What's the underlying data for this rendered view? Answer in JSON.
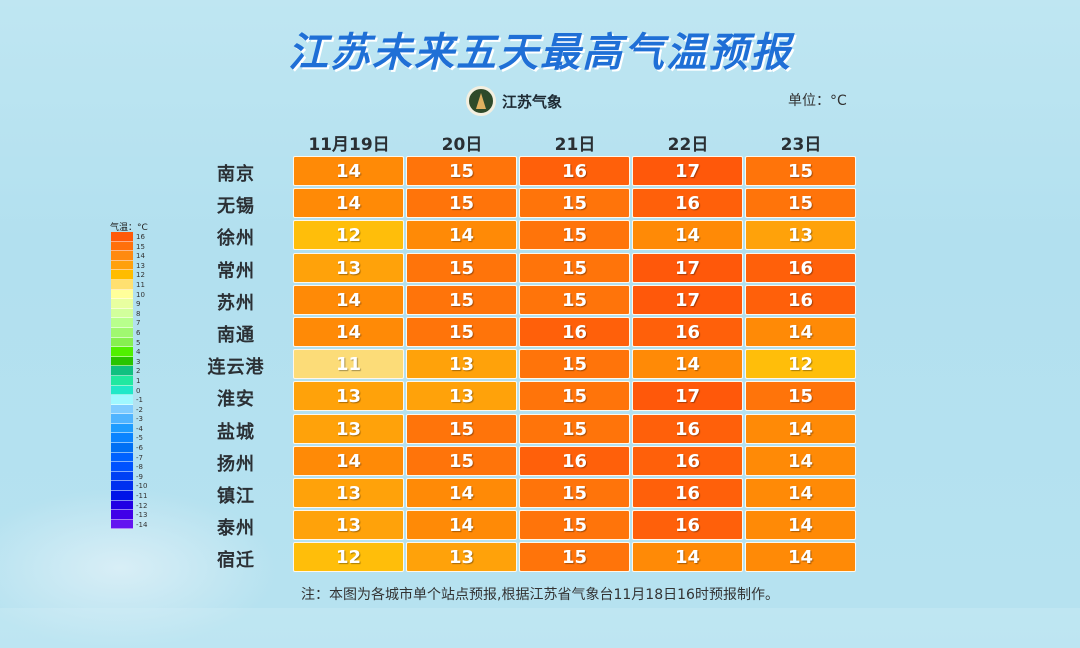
{
  "title": "江苏未来五天最高气温预报",
  "logo_text": "江苏气象",
  "unit": "单位：°C",
  "dates": [
    "11月19日",
    "20日",
    "21日",
    "22日",
    "23日"
  ],
  "rows": [
    {
      "city": "南京",
      "temps": [
        14,
        15,
        16,
        17,
        15
      ]
    },
    {
      "city": "无锡",
      "temps": [
        14,
        15,
        15,
        16,
        15
      ]
    },
    {
      "city": "徐州",
      "temps": [
        12,
        14,
        15,
        14,
        13
      ]
    },
    {
      "city": "常州",
      "temps": [
        13,
        15,
        15,
        17,
        16
      ]
    },
    {
      "city": "苏州",
      "temps": [
        14,
        15,
        15,
        17,
        16
      ]
    },
    {
      "city": "南通",
      "temps": [
        14,
        15,
        16,
        16,
        14
      ]
    },
    {
      "city": "连云港",
      "temps": [
        11,
        13,
        15,
        14,
        12
      ]
    },
    {
      "city": "淮安",
      "temps": [
        13,
        13,
        15,
        17,
        15
      ]
    },
    {
      "city": "盐城",
      "temps": [
        13,
        15,
        15,
        16,
        14
      ]
    },
    {
      "city": "扬州",
      "temps": [
        14,
        15,
        16,
        16,
        14
      ]
    },
    {
      "city": "镇江",
      "temps": [
        13,
        14,
        15,
        16,
        14
      ]
    },
    {
      "city": "泰州",
      "temps": [
        13,
        14,
        15,
        16,
        14
      ]
    },
    {
      "city": "宿迁",
      "temps": [
        12,
        13,
        15,
        14,
        14
      ]
    }
  ],
  "colors": {
    "11": "#fcdc78",
    "12": "#ffbe0a",
    "13": "#ffa20a",
    "14": "#ff8a06",
    "15": "#ff740a",
    "16": "#ff600a",
    "17": "#ff580a"
  },
  "legend": {
    "title": "气温：°C",
    "items": [
      {
        "label": "16",
        "color": "#ff5a0a"
      },
      {
        "label": "15",
        "color": "#ff700c"
      },
      {
        "label": "14",
        "color": "#ff8a10"
      },
      {
        "label": "13",
        "color": "#ffa00c"
      },
      {
        "label": "12",
        "color": "#ffbc00"
      },
      {
        "label": "11",
        "color": "#ffe070"
      },
      {
        "label": "10",
        "color": "#ffff9a"
      },
      {
        "label": "9",
        "color": "#e8ffa0"
      },
      {
        "label": "8",
        "color": "#d2ff9c"
      },
      {
        "label": "7",
        "color": "#b8ff8c"
      },
      {
        "label": "6",
        "color": "#a0f870"
      },
      {
        "label": "5",
        "color": "#86f050"
      },
      {
        "label": "4",
        "color": "#50f000"
      },
      {
        "label": "3",
        "color": "#28c400"
      },
      {
        "label": "2",
        "color": "#10c080"
      },
      {
        "label": "1",
        "color": "#20e8a0"
      },
      {
        "label": "0",
        "color": "#20e8c8"
      },
      {
        "label": "-1",
        "color": "#a0f8ff"
      },
      {
        "label": "-2",
        "color": "#80ccff"
      },
      {
        "label": "-3",
        "color": "#50b4ff"
      },
      {
        "label": "-4",
        "color": "#1e9cff"
      },
      {
        "label": "-5",
        "color": "#0a84ff"
      },
      {
        "label": "-6",
        "color": "#0070f4"
      },
      {
        "label": "-7",
        "color": "#0062ff"
      },
      {
        "label": "-8",
        "color": "#0052ff"
      },
      {
        "label": "-9",
        "color": "#0040f4"
      },
      {
        "label": "-10",
        "color": "#0030f0"
      },
      {
        "label": "-11",
        "color": "#0014e8"
      },
      {
        "label": "-12",
        "color": "#2000e4"
      },
      {
        "label": "-13",
        "color": "#4000e8"
      },
      {
        "label": "-14",
        "color": "#6414f0"
      }
    ]
  },
  "footer": "注：本图为各城市单个站点预报,根据江苏省气象台11月18日16时预报制作。"
}
